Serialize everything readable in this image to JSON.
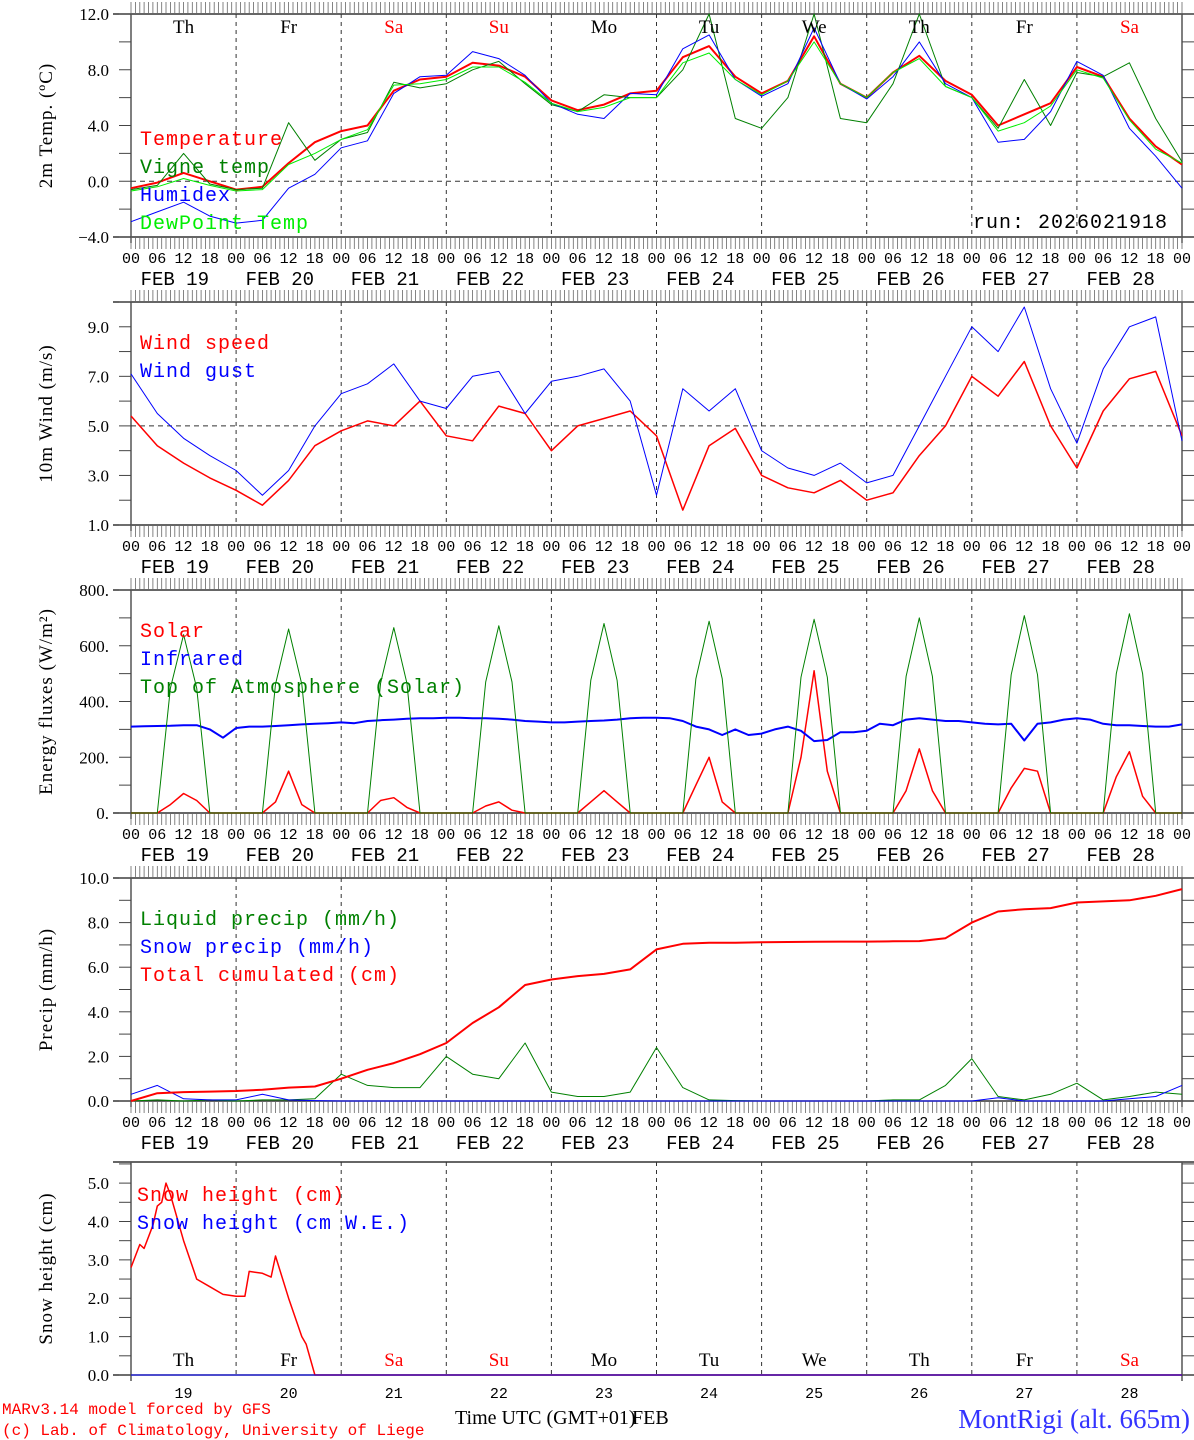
{
  "header": {
    "run": "run: 2026021918"
  },
  "footer": {
    "model": "MARv3.14 model forced by GFS",
    "credit": "(c) Lab. of Climatology, University of Liege",
    "xlabel": "Time UTC (GMT+01)",
    "xlabel_overlap": "FEB",
    "station": "MontRigi (alt. 665m)"
  },
  "colors": {
    "red": "#ff0000",
    "green": "#008000",
    "blue": "#0000ff",
    "lightgreen": "#00ee00",
    "station": "#3333ff"
  },
  "time_axis": {
    "hour_labels": [
      "00",
      "06",
      "12",
      "18"
    ],
    "final_hour_label": "00",
    "dates": [
      "FEB 19",
      "FEB 20",
      "FEB 21",
      "FEB 22",
      "FEB 23",
      "FEB 24",
      "FEB 25",
      "FEB 26",
      "FEB 27",
      "FEB 28"
    ],
    "day_numbers": [
      "19",
      "20",
      "21",
      "22",
      "23",
      "24",
      "25",
      "26",
      "27",
      "28"
    ],
    "day_names": [
      {
        "label": "Th",
        "weekend": false
      },
      {
        "label": "Fr",
        "weekend": false
      },
      {
        "label": "Sa",
        "weekend": true
      },
      {
        "label": "Su",
        "weekend": true
      },
      {
        "label": "Mo",
        "weekend": false
      },
      {
        "label": "Tu",
        "weekend": false
      },
      {
        "label": "We",
        "weekend": false
      },
      {
        "label": "Th",
        "weekend": false
      },
      {
        "label": "Fr",
        "weekend": false
      },
      {
        "label": "Sa",
        "weekend": true
      }
    ]
  },
  "chart_data": [
    {
      "type": "line",
      "id": "temperature",
      "ylabel": "2m Temp. (ºC)",
      "ylim": [
        -4,
        12
      ],
      "yticks": [
        "12.0",
        "8.0",
        "4.0",
        "0.0",
        "−4.0"
      ],
      "ytick_values": [
        12,
        8,
        4,
        0,
        -4
      ],
      "minor_step": 2,
      "reference_line": 0,
      "step_hours": 6,
      "show_day_names": true,
      "series": [
        {
          "name": "Temperature",
          "color": "#ff0000",
          "width": 2,
          "values": [
            -0.5,
            -0.1,
            0.6,
            0.0,
            -0.6,
            -0.4,
            1.3,
            2.8,
            3.6,
            4.0,
            6.5,
            7.3,
            7.5,
            8.5,
            8.3,
            7.5,
            5.8,
            5.1,
            5.5,
            6.3,
            6.5,
            8.9,
            9.7,
            7.5,
            6.3,
            7.2,
            10.4,
            7.0,
            6.0,
            7.8,
            9.0,
            7.2,
            6.2,
            4.0,
            4.8,
            5.6,
            8.2,
            7.5,
            4.5,
            2.5,
            1.2
          ]
        },
        {
          "name": "Vigne temp",
          "color": "#008000",
          "width": 1,
          "values": [
            -0.6,
            -0.3,
            2.0,
            -0.2,
            -0.6,
            -0.5,
            4.2,
            1.5,
            3.0,
            3.5,
            7.1,
            6.7,
            7.0,
            8.0,
            8.6,
            7.0,
            5.5,
            5.0,
            6.2,
            6.0,
            6.0,
            8.0,
            12.0,
            4.5,
            3.8,
            6.0,
            12.0,
            4.5,
            4.2,
            7.0,
            12.0,
            6.8,
            6.0,
            3.8,
            7.3,
            4.0,
            7.8,
            7.5,
            8.5,
            4.5,
            1.4
          ]
        },
        {
          "name": "Humidex",
          "color": "#0000ff",
          "width": 1,
          "values": [
            -2.9,
            -2.2,
            -1.5,
            -2.5,
            -3.0,
            -2.8,
            -0.5,
            0.5,
            2.4,
            2.9,
            6.3,
            7.5,
            7.6,
            9.3,
            8.8,
            7.6,
            5.6,
            4.8,
            4.5,
            6.3,
            6.2,
            9.5,
            10.5,
            7.3,
            6.1,
            7.0,
            11.0,
            7.0,
            5.9,
            7.5,
            10.0,
            7.0,
            6.0,
            2.8,
            3.0,
            5.0,
            8.6,
            7.6,
            3.8,
            1.8,
            -0.5
          ]
        },
        {
          "name": "DewPoint Temp",
          "color": "#00ee00",
          "width": 1,
          "values": [
            -0.7,
            -0.4,
            0.2,
            -0.3,
            -0.7,
            -0.6,
            1.2,
            2.0,
            3.0,
            3.7,
            6.9,
            7.0,
            7.3,
            8.2,
            8.2,
            7.1,
            5.6,
            5.0,
            5.3,
            6.0,
            6.0,
            8.5,
            9.2,
            7.3,
            6.2,
            7.2,
            10.0,
            7.0,
            6.0,
            7.8,
            8.8,
            6.8,
            6.0,
            3.6,
            4.2,
            5.4,
            8.0,
            7.4,
            4.4,
            2.3,
            1.3
          ]
        }
      ]
    },
    {
      "type": "line",
      "id": "wind",
      "ylabel": "10m Wind (m/s)",
      "ylim": [
        1,
        10
      ],
      "yticks": [
        "9.0",
        "7.0",
        "5.0",
        "3.0",
        "1.0"
      ],
      "ytick_values": [
        9,
        7,
        5,
        3,
        1
      ],
      "minor_step": 1,
      "reference_line": 5,
      "step_hours": 6,
      "series": [
        {
          "name": "Wind speed",
          "color": "#ff0000",
          "width": 1.5,
          "values": [
            5.4,
            4.2,
            3.5,
            2.9,
            2.4,
            1.8,
            2.8,
            4.2,
            4.8,
            5.2,
            5.0,
            6.0,
            4.6,
            4.4,
            5.8,
            5.5,
            4.0,
            5.0,
            5.3,
            5.6,
            4.6,
            1.6,
            4.2,
            4.9,
            3.0,
            2.5,
            2.3,
            2.8,
            2.0,
            2.3,
            3.8,
            5.0,
            7.0,
            6.2,
            7.6,
            5.0,
            3.3,
            5.6,
            6.9,
            7.2,
            4.6
          ]
        },
        {
          "name": "Wind gust",
          "color": "#0000ff",
          "width": 1,
          "values": [
            7.1,
            5.5,
            4.5,
            3.8,
            3.2,
            2.2,
            3.2,
            5.0,
            6.3,
            6.7,
            7.5,
            6.0,
            5.7,
            7.0,
            7.2,
            5.5,
            6.8,
            7.0,
            7.3,
            6.0,
            2.2,
            6.5,
            5.6,
            6.5,
            4.0,
            3.3,
            3.0,
            3.5,
            2.7,
            3.0,
            5.0,
            7.0,
            9.0,
            8.0,
            9.8,
            6.5,
            4.3,
            7.3,
            9.0,
            9.4,
            4.4
          ]
        }
      ]
    },
    {
      "type": "line",
      "id": "energy",
      "ylabel": "Energy fluxes (W/m²)",
      "ylim": [
        0,
        800
      ],
      "yticks": [
        "800.",
        "600.",
        "400.",
        "200.",
        "0."
      ],
      "ytick_values": [
        800,
        600,
        400,
        200,
        0
      ],
      "minor_step": 100,
      "step_hours": 3,
      "series": [
        {
          "name": "Solar",
          "color": "#ff0000",
          "width": 1.5,
          "values": [
            0,
            0,
            0,
            30,
            70,
            45,
            0,
            0,
            0,
            0,
            0,
            40,
            150,
            30,
            0,
            0,
            0,
            0,
            0,
            45,
            55,
            20,
            0,
            0,
            0,
            0,
            0,
            25,
            40,
            10,
            0,
            0,
            0,
            0,
            0,
            40,
            80,
            40,
            0,
            0,
            0,
            0,
            0,
            100,
            200,
            40,
            0,
            0,
            0,
            0,
            0,
            200,
            510,
            150,
            0,
            0,
            0,
            0,
            0,
            80,
            230,
            80,
            0,
            0,
            0,
            0,
            0,
            90,
            160,
            150,
            0,
            0,
            0,
            0,
            0,
            130,
            220,
            60,
            0,
            0,
            0
          ]
        },
        {
          "name": "Infrared",
          "color": "#0000ff",
          "width": 2,
          "values": [
            310,
            311,
            312,
            313,
            315,
            315,
            300,
            270,
            305,
            310,
            310,
            312,
            315,
            318,
            320,
            322,
            325,
            322,
            330,
            333,
            335,
            338,
            340,
            340,
            342,
            342,
            340,
            340,
            338,
            335,
            330,
            328,
            325,
            325,
            328,
            330,
            332,
            335,
            340,
            342,
            342,
            340,
            330,
            310,
            300,
            280,
            300,
            280,
            285,
            300,
            310,
            295,
            258,
            262,
            290,
            290,
            295,
            320,
            315,
            335,
            340,
            335,
            330,
            330,
            325,
            320,
            318,
            320,
            260,
            320,
            325,
            335,
            340,
            335,
            320,
            315,
            315,
            312,
            310,
            310,
            318
          ]
        },
        {
          "name": "Top of Atmosphere (Solar)",
          "color": "#008000",
          "width": 1,
          "values": [
            0,
            0,
            0,
            448,
            640,
            448,
            0,
            0,
            0,
            0,
            0,
            462,
            660,
            462,
            0,
            0,
            0,
            0,
            0,
            466,
            665,
            466,
            0,
            0,
            0,
            0,
            0,
            470,
            672,
            470,
            0,
            0,
            0,
            0,
            0,
            476,
            680,
            476,
            0,
            0,
            0,
            0,
            0,
            482,
            688,
            482,
            0,
            0,
            0,
            0,
            0,
            487,
            695,
            487,
            0,
            0,
            0,
            0,
            0,
            490,
            700,
            490,
            0,
            0,
            0,
            0,
            0,
            496,
            708,
            496,
            0,
            0,
            0,
            0,
            0,
            500,
            715,
            500,
            0,
            0,
            0
          ]
        }
      ]
    },
    {
      "type": "line",
      "id": "precip",
      "ylabel": "Precip (mm/h)",
      "ylim": [
        0,
        10
      ],
      "yticks": [
        "10.0",
        "8.0",
        "6.0",
        "4.0",
        "2.0",
        "0.0"
      ],
      "ytick_values": [
        10,
        8,
        6,
        4,
        2,
        0
      ],
      "minor_step": 1,
      "step_hours": 6,
      "series": [
        {
          "name": "Liquid precip (mm/h)",
          "color": "#008000",
          "width": 1,
          "values": [
            0,
            0.05,
            0,
            0.05,
            0,
            0.05,
            0.05,
            0.1,
            1.2,
            0.7,
            0.6,
            0.6,
            2.0,
            1.2,
            1.0,
            2.6,
            0.4,
            0.2,
            0.2,
            0.4,
            2.4,
            0.6,
            0.05,
            0.02,
            0,
            0,
            0,
            0,
            0,
            0.05,
            0.05,
            0.7,
            1.9,
            0.2,
            0.05,
            0.3,
            0.8,
            0.05,
            0.2,
            0.4,
            0.3
          ]
        },
        {
          "name": "Snow precip (mm/h)",
          "color": "#0000ff",
          "width": 1,
          "values": [
            0.3,
            0.7,
            0.1,
            0.05,
            0.05,
            0.3,
            0.05,
            0.02,
            0,
            0,
            0,
            0,
            0,
            0,
            0,
            0,
            0,
            0,
            0,
            0,
            0,
            0,
            0,
            0,
            0,
            0,
            0,
            0,
            0,
            0,
            0,
            0,
            0,
            0.15,
            0,
            0,
            0,
            0,
            0.1,
            0.2,
            0.7
          ]
        },
        {
          "name": "Total cumulated (cm)",
          "color": "#ff0000",
          "width": 2,
          "values": [
            0,
            0.35,
            0.4,
            0.42,
            0.45,
            0.5,
            0.6,
            0.65,
            1.0,
            1.4,
            1.7,
            2.1,
            2.6,
            3.5,
            4.2,
            5.2,
            5.45,
            5.6,
            5.7,
            5.9,
            6.8,
            7.05,
            7.1,
            7.1,
            7.12,
            7.13,
            7.14,
            7.15,
            7.15,
            7.16,
            7.17,
            7.3,
            8.0,
            8.5,
            8.6,
            8.65,
            8.9,
            8.95,
            9.0,
            9.2,
            9.5
          ]
        }
      ]
    },
    {
      "type": "line",
      "id": "snow",
      "ylabel": "Snow height (cm)",
      "ylim": [
        0,
        5.55
      ],
      "yticks": [
        "5.0",
        "4.0",
        "3.0",
        "2.0",
        "1.0",
        "0.0"
      ],
      "ytick_values": [
        5,
        4,
        3,
        2,
        1,
        0
      ],
      "minor_step": 0.5,
      "bottom_day_labels": true,
      "series": [
        {
          "name": "Snow height (cm)",
          "color": "#ff0000",
          "width": 1.5,
          "hours": [
            0,
            2,
            3,
            5,
            6,
            7,
            8,
            9,
            12,
            15,
            18,
            21,
            24,
            26,
            27,
            30,
            32,
            33,
            36,
            39,
            40,
            42,
            240
          ],
          "values": [
            2.8,
            3.4,
            3.3,
            3.9,
            4.4,
            4.5,
            5.0,
            4.7,
            3.5,
            2.5,
            2.3,
            2.1,
            2.05,
            2.05,
            2.7,
            2.65,
            2.55,
            3.1,
            2.0,
            1.0,
            0.8,
            0,
            0
          ]
        },
        {
          "name": "Snow height (cm W.E.)",
          "color": "#0000ff",
          "width": 1,
          "hours": [
            0,
            240
          ],
          "values": [
            0,
            0
          ]
        }
      ]
    }
  ]
}
